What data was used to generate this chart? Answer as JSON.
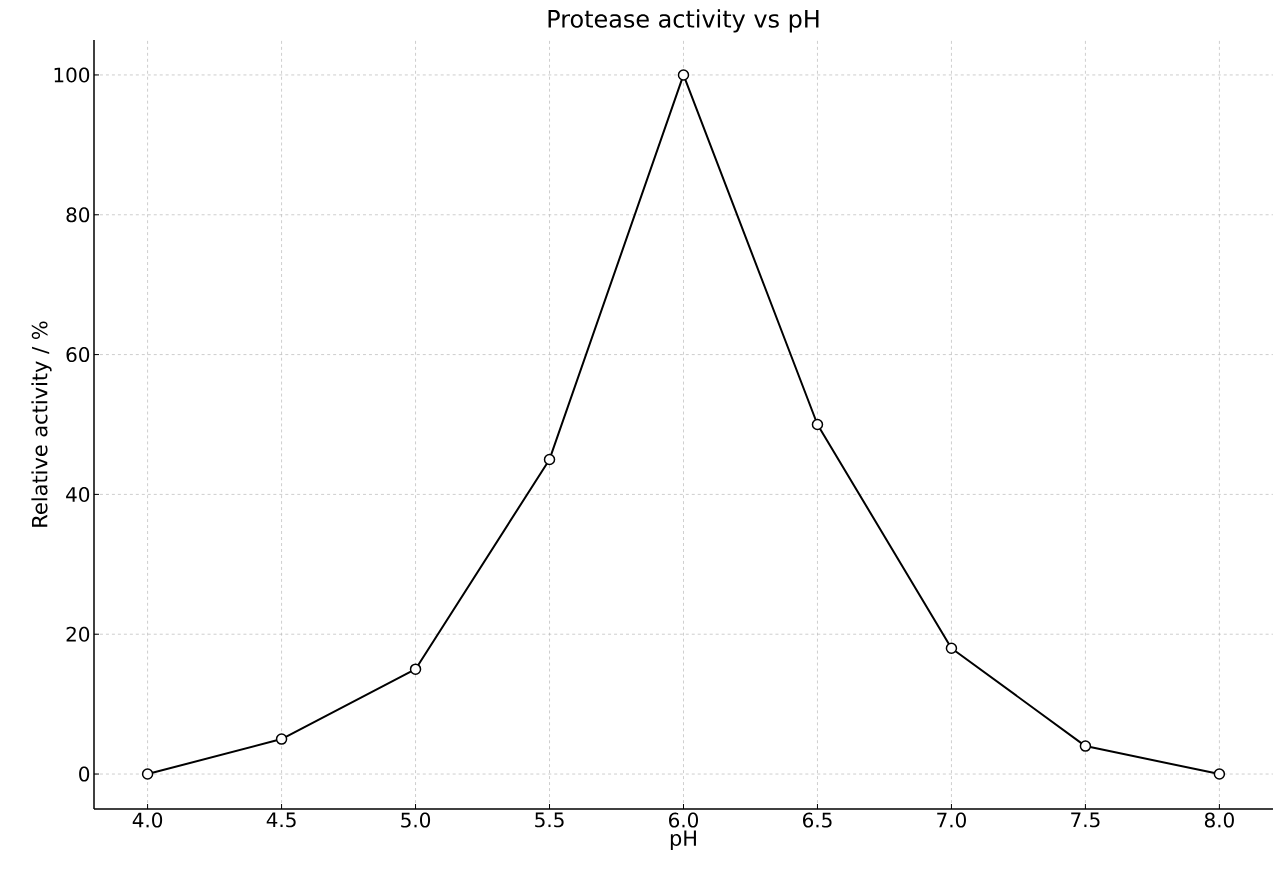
{
  "chart_data": {
    "type": "line",
    "title": "Protease activity vs pH",
    "xlabel": "pH",
    "ylabel": "Relative activity / %",
    "x": [
      4.0,
      4.5,
      5.0,
      5.5,
      6.0,
      6.5,
      7.0,
      7.5,
      8.0
    ],
    "values": [
      0,
      5,
      15,
      45,
      100,
      50,
      18,
      4,
      0
    ],
    "color": "#000000",
    "marker": "circle",
    "line_style": "solid",
    "grid": true,
    "xlim": [
      3.8,
      8.2
    ],
    "ylim": [
      -5,
      105
    ],
    "xticks": [
      {
        "value": 4,
        "label": "4.0"
      },
      {
        "value": 4.5,
        "label": "4.5"
      },
      {
        "value": 5,
        "label": "5.0"
      },
      {
        "value": 5.5,
        "label": "5.5"
      },
      {
        "value": 6,
        "label": "6.0"
      },
      {
        "value": 6.5,
        "label": "6.5"
      },
      {
        "value": 7,
        "label": "7.0"
      },
      {
        "value": 7.5,
        "label": "7.5"
      },
      {
        "value": 8,
        "label": "8.0"
      }
    ],
    "yticks": [
      0,
      20,
      40,
      60,
      80,
      100
    ]
  }
}
